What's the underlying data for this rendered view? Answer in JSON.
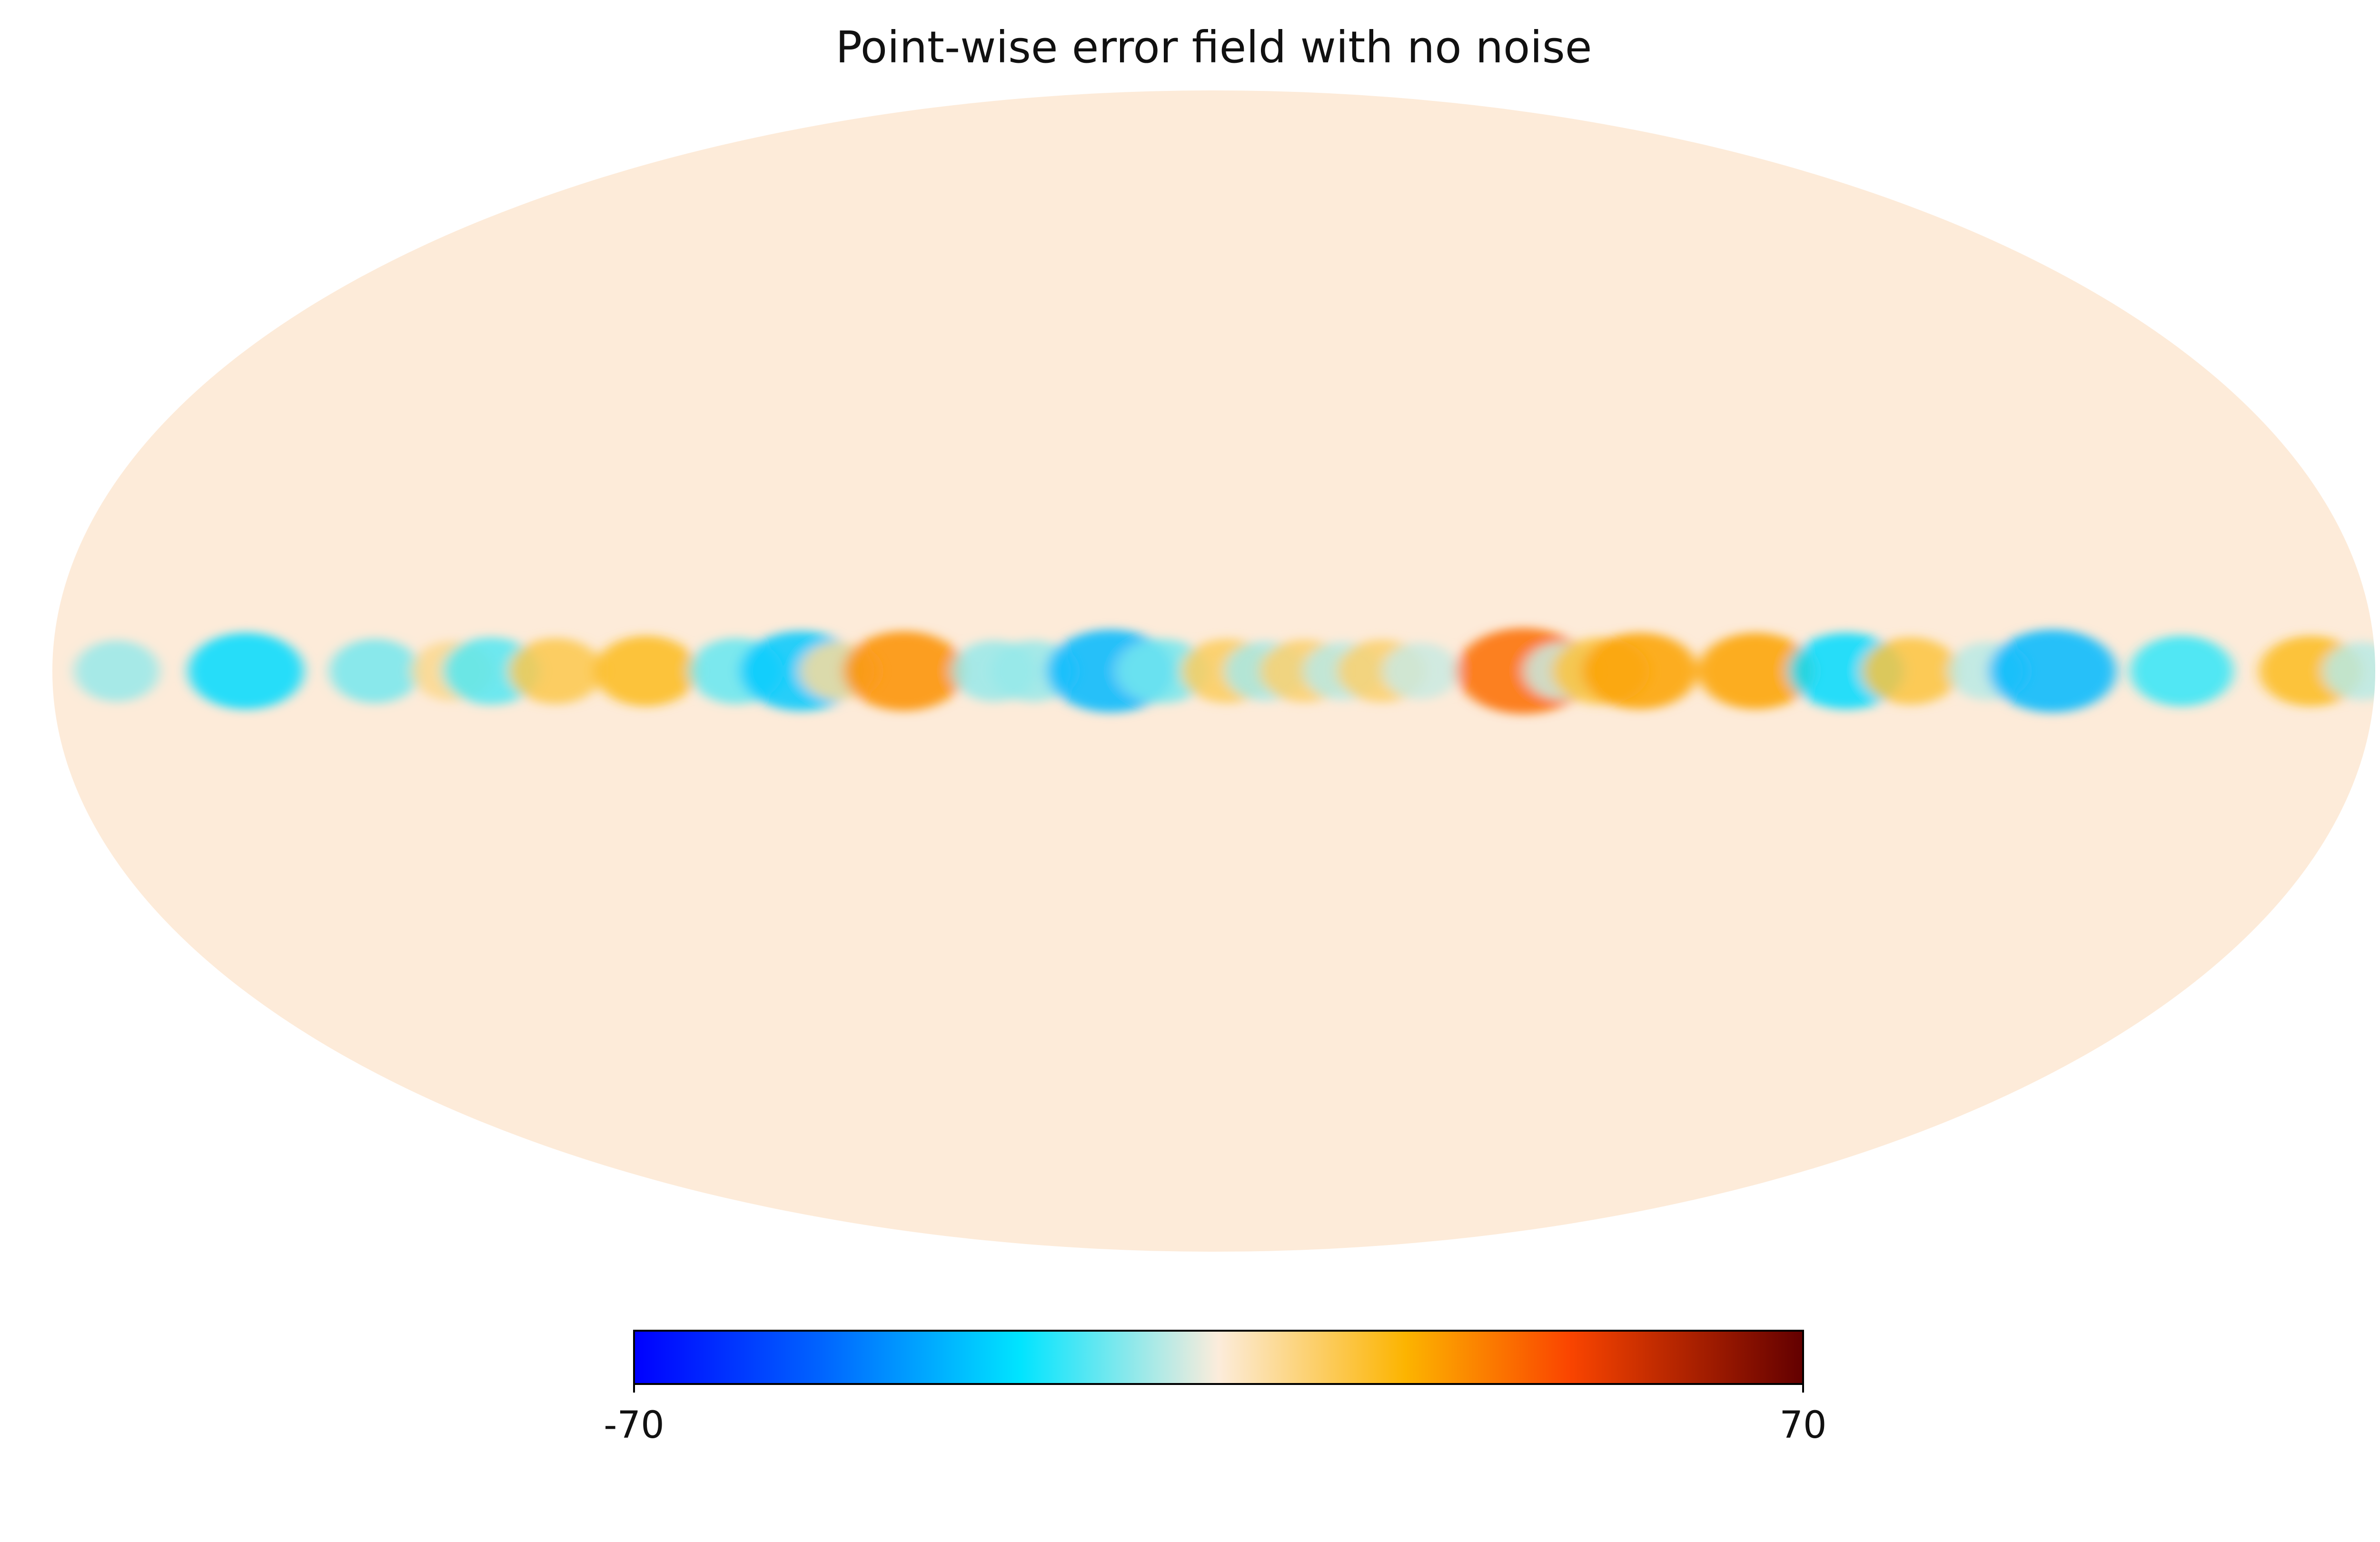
{
  "chart_data": {
    "type": "heatmap",
    "title": "Point-wise error field with no noise",
    "projection": "mollweide",
    "colormap": {
      "name": "planck",
      "stops": [
        "#0000ff",
        "#0064ff",
        "#00e4ff",
        "#fcecdb",
        "#fcb400",
        "#fa4500",
        "#630000"
      ]
    },
    "background_color": "#fdebd9",
    "colorbar": {
      "vmin": -70,
      "vmax": 70,
      "tick_labels": [
        "-70",
        "70"
      ]
    },
    "equatorial_band": [
      {
        "lon": 170,
        "value": -6
      },
      {
        "lon": 150,
        "value": -16
      },
      {
        "lon": 130,
        "value": -8
      },
      {
        "lon": 118,
        "value": 5
      },
      {
        "lon": 112,
        "value": -10
      },
      {
        "lon": 102,
        "value": 9
      },
      {
        "lon": 88,
        "value": 12
      },
      {
        "lon": 74,
        "value": -9
      },
      {
        "lon": 64,
        "value": -18
      },
      {
        "lon": 58,
        "value": 4
      },
      {
        "lon": 48,
        "value": 18
      },
      {
        "lon": 34,
        "value": -6
      },
      {
        "lon": 28,
        "value": -6
      },
      {
        "lon": 16,
        "value": -20
      },
      {
        "lon": 8,
        "value": -8
      },
      {
        "lon": -2,
        "value": 8
      },
      {
        "lon": -8,
        "value": -5
      },
      {
        "lon": -14,
        "value": 7
      },
      {
        "lon": -20,
        "value": -4
      },
      {
        "lon": -26,
        "value": 7
      },
      {
        "lon": -32,
        "value": -3
      },
      {
        "lon": -48,
        "value": 22
      },
      {
        "lon": -54,
        "value": -3
      },
      {
        "lon": -60,
        "value": 10
      },
      {
        "lon": -66,
        "value": 16
      },
      {
        "lon": -84,
        "value": 16
      },
      {
        "lon": -98,
        "value": -16
      },
      {
        "lon": -108,
        "value": 10
      },
      {
        "lon": -120,
        "value": -4
      },
      {
        "lon": -130,
        "value": -20
      },
      {
        "lon": -150,
        "value": -12
      },
      {
        "lon": -170,
        "value": 12
      },
      {
        "lon": -178,
        "value": -4
      }
    ]
  }
}
